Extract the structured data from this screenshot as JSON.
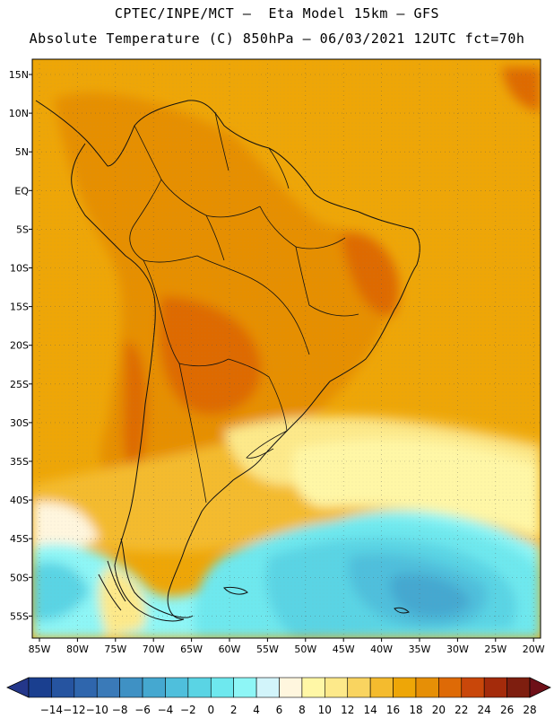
{
  "title": {
    "line1": "CPTEC/INPE/MCT –  Eta Model 15km – GFS",
    "line2": "Absolute Temperature (C) 850hPa – 06/03/2021 12UTC fct=70h"
  },
  "map": {
    "lat_labels": [
      "15N",
      "10N",
      "5N",
      "EQ",
      "5S",
      "10S",
      "15S",
      "20S",
      "25S",
      "30S",
      "35S",
      "40S",
      "45S",
      "50S",
      "55S"
    ],
    "lon_labels": [
      "85W",
      "80W",
      "75W",
      "70W",
      "65W",
      "60W",
      "55W",
      "50W",
      "45W",
      "40W",
      "35W",
      "30W",
      "25W",
      "20W"
    ]
  },
  "colorbar": {
    "labels": [
      "-14",
      "-12",
      "-10",
      "-8",
      "-6",
      "-4",
      "-2",
      "0",
      "2",
      "4",
      "6",
      "8",
      "10",
      "12",
      "14",
      "16",
      "18",
      "20",
      "22",
      "24",
      "26",
      "28"
    ],
    "colors": [
      "#1a3f8f",
      "#2654a0",
      "#2f66ad",
      "#3a7ab8",
      "#3f91c4",
      "#45a8d0",
      "#4fbfdc",
      "#5ad4e4",
      "#6ee8ee",
      "#8ef6f6",
      "#d2f4fa",
      "#fff6de",
      "#fff7a6",
      "#fde98a",
      "#f9d460",
      "#f4bb2e",
      "#eea607",
      "#e68f06",
      "#de6a06",
      "#c9470a",
      "#a42b0b",
      "#7e1e0f"
    ],
    "under_color": "#24378a",
    "over_color": "#6e1018"
  }
}
